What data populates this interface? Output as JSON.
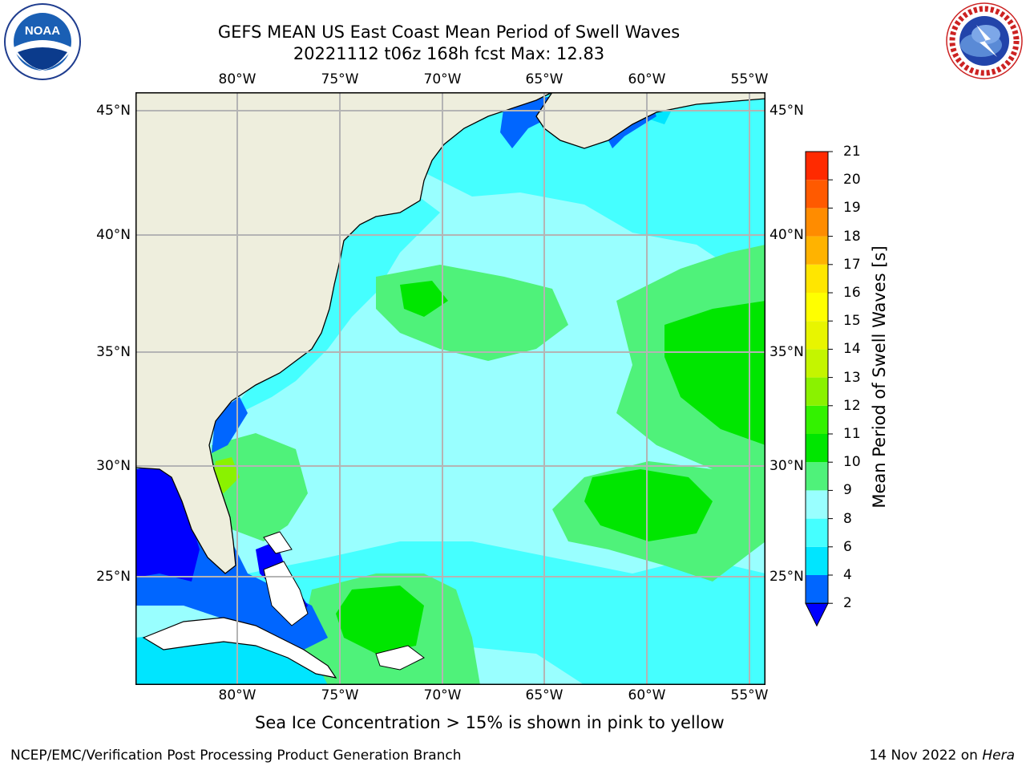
{
  "title_line1": "GEFS MEAN US East Coast Mean Period of Swell Waves",
  "title_line2": "20221112 t06z 168h fcst   Max: 12.83",
  "lon_labels": [
    "80°W",
    "75°W",
    "70°W",
    "65°W",
    "60°W",
    "55°W"
  ],
  "lat_labels": [
    "45°N",
    "40°N",
    "35°N",
    "30°N",
    "25°N"
  ],
  "colorbar": {
    "label": "Mean Period of Swell Waves [s]",
    "ticks": [
      "2",
      "4",
      "6",
      "8",
      "9",
      "10",
      "11",
      "12",
      "13",
      "14",
      "15",
      "16",
      "17",
      "18",
      "19",
      "20",
      "21"
    ],
    "colors": [
      "#0066ff",
      "#00e5ff",
      "#45ffff",
      "#99ffff",
      "#4ff27a",
      "#00e600",
      "#33f200",
      "#8af200",
      "#c4f500",
      "#e8f500",
      "#ffff00",
      "#ffe600",
      "#ffb300",
      "#ff8c00",
      "#ff5a00",
      "#ff2a00",
      "#ff0000"
    ],
    "under_color": "#0000ff"
  },
  "note": "Sea Ice Concentration > 15% is shown in pink to yellow",
  "footer_left": "NCEP/EMC/Verification Post Processing Product Generation Branch",
  "footer_date": "14 Nov 2022 on",
  "footer_machine": "Hera",
  "logos": {
    "noaa_text": "NOAA",
    "noaa_ring": "NATIONAL OCEANIC AND ATMOSPHERIC ADMINISTRATION · U.S. DEPARTMENT OF COMMERCE",
    "nws_ring": "NATIONAL WEATHER SERVICE"
  },
  "colors": {
    "land": "#eeeedd",
    "ocean_base": "#99ffff",
    "grid": "#b4b4b4"
  }
}
